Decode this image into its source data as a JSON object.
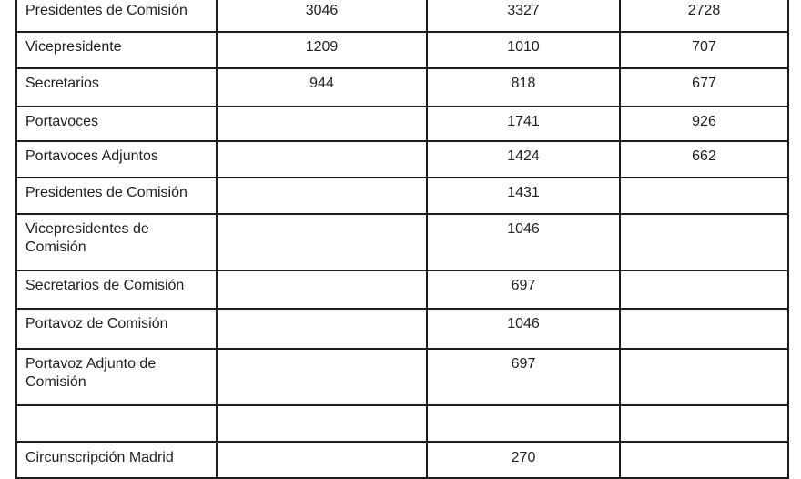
{
  "table": {
    "rows": [
      {
        "label": "Presidentes de Comisión",
        "v1": "3046",
        "v2": "3327",
        "v3": "2728"
      },
      {
        "label": "Vicepresidente",
        "v1": "1209",
        "v2": "1010",
        "v3": "707"
      },
      {
        "label": "Secretarios",
        "v1": "944",
        "v2": "818",
        "v3": "677"
      },
      {
        "label": "Portavoces",
        "v1": "",
        "v2": "1741",
        "v3": "926"
      },
      {
        "label": "Portavoces Adjuntos",
        "v1": "",
        "v2": "1424",
        "v3": "662"
      },
      {
        "label": "Presidentes de Comisión",
        "v1": "",
        "v2": "1431",
        "v3": ""
      },
      {
        "label": "Vicepresidentes de\nComisión",
        "v1": "",
        "v2": "1046",
        "v3": ""
      },
      {
        "label": "Secretarios de Comisión",
        "v1": "",
        "v2": "697",
        "v3": ""
      },
      {
        "label": "Portavoz de Comisión",
        "v1": "",
        "v2": "1046",
        "v3": ""
      },
      {
        "label": "Portavoz Adjunto de\nComisión",
        "v1": "",
        "v2": "697",
        "v3": ""
      },
      {
        "label": "",
        "v1": "",
        "v2": "",
        "v3": ""
      },
      {
        "label": "Circunscripción Madrid",
        "v1": "",
        "v2": "270",
        "v3": ""
      }
    ]
  }
}
